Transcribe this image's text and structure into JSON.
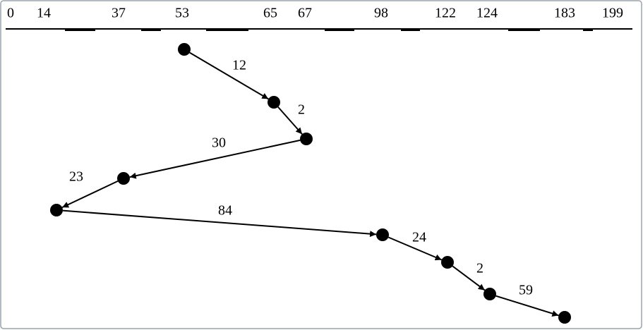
{
  "axis": {
    "ticks": [
      0,
      14,
      37,
      53,
      65,
      67,
      98,
      122,
      124,
      183,
      199
    ]
  },
  "path": {
    "distances": [
      12,
      2,
      30,
      23,
      84,
      24,
      2,
      59
    ]
  }
}
